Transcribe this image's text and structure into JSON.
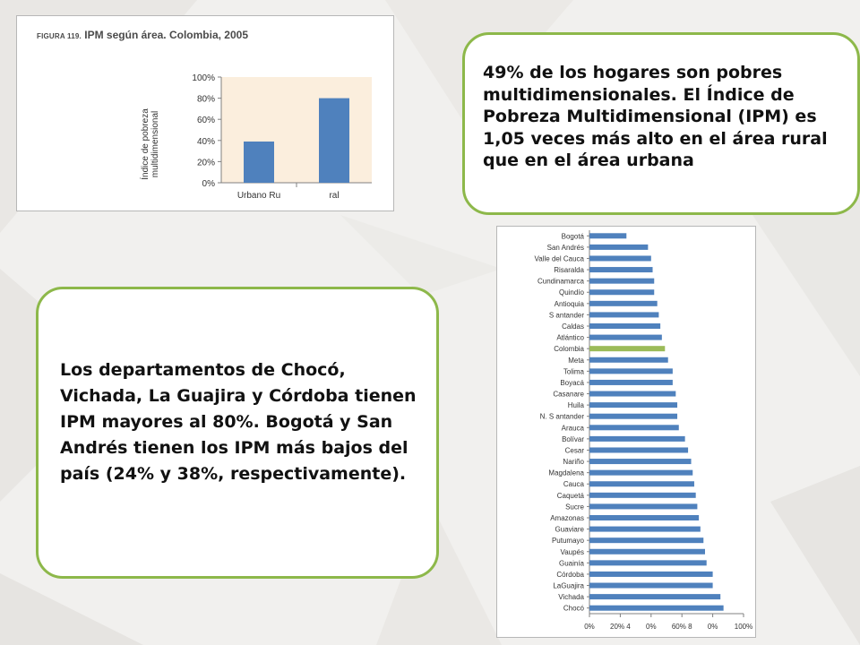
{
  "colors": {
    "bar": "#4f81bd",
    "bar_highlight": "#9bbb59",
    "callout_border": "#8db84a",
    "plot_bg": "#fbeedd"
  },
  "figure1": {
    "label": "FIGURA 119.",
    "title": "IPM según área. Colombia, 2005"
  },
  "callout_top": {
    "text": "49% de los hogares son pobres multidimensionales. El Índice de Pobreza Multidimensional (IPM) es 1,05 veces más alto en el área rural que en el área urbana"
  },
  "callout_bottom": {
    "text": "Los departamentos de Chocó, Vichada, La Guajira y Córdoba tienen IPM mayores al 80%. Bogotá y San Andrés tienen los IPM más bajos del país (24% y 38%, respectivamente)."
  },
  "chart_data": [
    {
      "type": "bar",
      "title": "IPM según área. Colombia, 2005",
      "ylabel": "Índice de pobreza multidimensional",
      "xlabel": "",
      "categories": [
        "Urbano Ru",
        "ral"
      ],
      "values": [
        39,
        80
      ],
      "ylim": [
        0,
        100
      ],
      "ytick_labels": [
        "0%",
        "20%",
        "40%",
        "60%",
        "80%",
        "100%"
      ],
      "grid": false
    },
    {
      "type": "bar",
      "orientation": "horizontal",
      "categories": [
        "Bogotá",
        "San Andrés",
        "Valle del Cauca",
        "Risaralda",
        "Cundinamarca",
        "Quindío",
        "Antioquia",
        "S antander",
        "Caldas",
        "Atlántico",
        "Colombia",
        "Meta",
        "Tolima",
        "Boyacá",
        "Casanare",
        "Huila",
        "N. S antander",
        "Arauca",
        "Bolívar",
        "Cesar",
        "Nariño",
        "Magdalena",
        "Cauca",
        "Caquetá",
        "Sucre",
        "Amazonas",
        "Guaviare",
        "Putumayo",
        "Vaupés",
        "Guainía",
        "Córdoba",
        "LaGuajira",
        "Vichada",
        "Chocó"
      ],
      "values": [
        24,
        38,
        40,
        41,
        42,
        42,
        44,
        45,
        46,
        47,
        49,
        51,
        54,
        54,
        56,
        57,
        57,
        58,
        62,
        64,
        66,
        67,
        68,
        69,
        70,
        71,
        72,
        74,
        75,
        76,
        80,
        80,
        85,
        87
      ],
      "highlight": "Colombia",
      "xlim": [
        0,
        100
      ],
      "xtick_labels": [
        "0%",
        "20% 4",
        "0%",
        "60% 8",
        "0%",
        "100%"
      ],
      "grid": false
    }
  ]
}
